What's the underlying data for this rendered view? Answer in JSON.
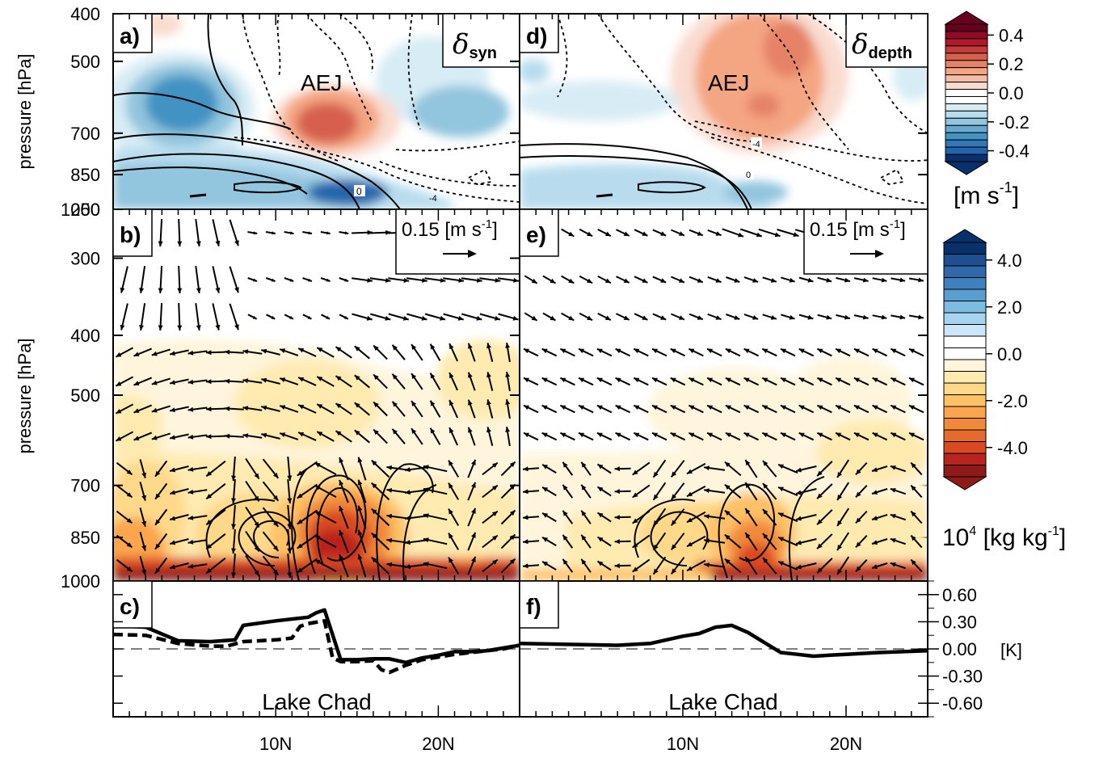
{
  "chart_data": {
    "type": "contour-panels",
    "panels": [
      {
        "label": "a)",
        "ylabel": "pressure [hPa]",
        "yticks": [
          "400",
          "500",
          "700",
          "850",
          "1000"
        ],
        "ylim_hPa": [
          1000,
          400
        ],
        "title_symbol": "δ",
        "title_sub": "syn",
        "annotation": "AEJ",
        "contour_labels": [
          "0",
          "-4"
        ]
      },
      {
        "label": "d)",
        "yticks": [],
        "title_symbol": "δ",
        "title_sub": "depth",
        "annotation": "AEJ",
        "contour_labels": [
          "-4",
          "0"
        ]
      },
      {
        "label": "b)",
        "ylabel": "pressure [hPa]",
        "yticks": [
          "250",
          "300",
          "400",
          "500",
          "700",
          "850",
          "1000"
        ],
        "ylim_hPa": [
          1000,
          250
        ],
        "ref_vector": "0.15 [m s",
        "ref_vector_exp": "-1",
        "ref_vector_close": "]"
      },
      {
        "label": "e)",
        "ref_vector": "0.15 [m s",
        "ref_vector_exp": "-1",
        "ref_vector_close": "]"
      },
      {
        "label": "c)",
        "annotation": "Lake Chad",
        "series": [
          {
            "name": "",
            "style": "solid",
            "x": [
              0,
              2,
              4,
              6,
              7.5,
              8,
              10,
              12,
              12.5,
              13,
              14,
              15,
              16,
              17,
              18,
              19,
              20,
              21,
              22,
              23,
              24,
              25
            ],
            "y": [
              0.26,
              0.24,
              0.09,
              0.08,
              0.1,
              0.26,
              0.31,
              0.35,
              0.4,
              0.43,
              -0.12,
              -0.12,
              -0.11,
              -0.11,
              -0.15,
              -0.1,
              -0.07,
              -0.03,
              -0.03,
              -0.02,
              0.01,
              0.04
            ]
          },
          {
            "name": "",
            "style": "dashed",
            "x": [
              0,
              2,
              4,
              6,
              7,
              8,
              10,
              11,
              11.5,
              12,
              13,
              13.5,
              14,
              15,
              16,
              16.5,
              17,
              18,
              19,
              20,
              21,
              22,
              23,
              24,
              25
            ],
            "y": [
              0.16,
              0.15,
              0.06,
              0.03,
              0.03,
              0.08,
              0.1,
              0.12,
              0.25,
              0.28,
              0.31,
              -0.1,
              -0.14,
              -0.14,
              -0.13,
              -0.23,
              -0.26,
              -0.18,
              -0.12,
              -0.09,
              -0.06,
              -0.04,
              -0.02,
              0.0,
              0.04
            ]
          }
        ]
      },
      {
        "label": "f)",
        "annotation": "Lake Chad",
        "series": [
          {
            "name": "",
            "style": "solid",
            "x": [
              0,
              3,
              6,
              8,
              9,
              10,
              11,
              12,
              13,
              14,
              15,
              16,
              17,
              18,
              19,
              20,
              22,
              25
            ],
            "y": [
              0.06,
              0.05,
              0.04,
              0.06,
              0.1,
              0.14,
              0.17,
              0.24,
              0.26,
              0.18,
              0.07,
              -0.04,
              -0.06,
              -0.08,
              -0.07,
              -0.06,
              -0.04,
              -0.02
            ]
          }
        ]
      }
    ],
    "xticks": [
      "10N",
      "20N"
    ],
    "xlim_deg": [
      0,
      25
    ],
    "line_y_ticks": [
      "0.60",
      "0.30",
      "0.00",
      "-0.30",
      "-0.60"
    ],
    "line_ylim": [
      -0.75,
      0.75
    ],
    "line_unit": "[K]",
    "colorbar_wind": {
      "ticks": [
        "0.4",
        "0.2",
        "0.0",
        "-0.2",
        "-0.4"
      ],
      "unit_main": "[m s",
      "unit_exp": "-1",
      "unit_close": "]"
    },
    "colorbar_humidity": {
      "ticks": [
        "4.0",
        "2.0",
        "0.0",
        "-2.0",
        "-4.0"
      ],
      "unit_pre": "10",
      "unit_pre_exp": "4",
      "unit_main": " [kg kg",
      "unit_exp": "-1",
      "unit_close": "]"
    },
    "colors": {
      "wind_scale": [
        "#67001f",
        "#8e0c26",
        "#b2182b",
        "#c43c3c",
        "#d6604d",
        "#e58268",
        "#f4a582",
        "#f7bea7",
        "#fadbd0",
        "#ffffff",
        "#ffffff",
        "#d8ecf5",
        "#b8dcee",
        "#92c5de",
        "#6aa9cf",
        "#4393c3",
        "#3377b6",
        "#2166ac",
        "#08306b"
      ],
      "humidity_scale": [
        "#08306b",
        "#1f4e91",
        "#2f68ab",
        "#3f80bf",
        "#5a9ed0",
        "#7dbde2",
        "#a6d4ee",
        "#cbe6f6",
        "#ffffff",
        "#ffffff",
        "#fff5dc",
        "#ffeab0",
        "#ffd98a",
        "#ffc165",
        "#fba64e",
        "#f08a3a",
        "#e56b2c",
        "#d94a22",
        "#b8241e",
        "#8e1a1a"
      ]
    }
  }
}
